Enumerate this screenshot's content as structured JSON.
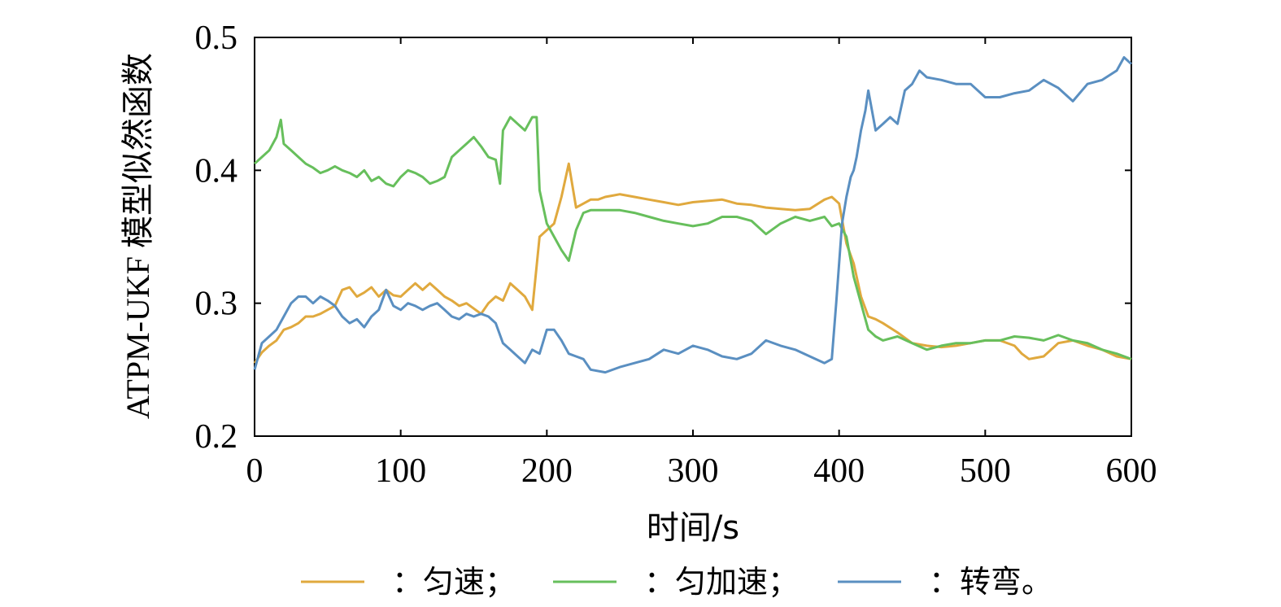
{
  "chart_data": {
    "type": "line",
    "title": "",
    "xlabel": "时间/s",
    "ylabel": "ATPM-UKF 模型似然函数",
    "xlim": [
      0,
      600
    ],
    "ylim": [
      0.2,
      0.5
    ],
    "xticks": [
      0,
      100,
      200,
      300,
      400,
      500,
      600
    ],
    "xtick_labels": [
      "0",
      "100",
      "200",
      "300",
      "400",
      "500",
      "600"
    ],
    "yticks": [
      0.2,
      0.3,
      0.4,
      0.5
    ],
    "ytick_labels": [
      "0.2",
      "0.3",
      "0.4",
      "0.5"
    ],
    "grid": false,
    "legend_position": "bottom",
    "legend_colon": "：",
    "series": [
      {
        "name": "匀速；",
        "color": "#E0A93E",
        "x": [
          0,
          5,
          10,
          15,
          20,
          25,
          30,
          35,
          40,
          45,
          50,
          55,
          60,
          65,
          70,
          75,
          80,
          85,
          90,
          95,
          100,
          105,
          110,
          115,
          120,
          125,
          130,
          135,
          140,
          145,
          150,
          155,
          160,
          165,
          170,
          175,
          180,
          185,
          190,
          195,
          200,
          205,
          210,
          215,
          220,
          225,
          230,
          235,
          240,
          245,
          250,
          260,
          270,
          280,
          290,
          300,
          310,
          320,
          330,
          340,
          350,
          360,
          370,
          380,
          390,
          395,
          400,
          405,
          410,
          415,
          420,
          425,
          430,
          440,
          450,
          460,
          470,
          480,
          490,
          500,
          510,
          520,
          525,
          530,
          540,
          550,
          560,
          570,
          580,
          590,
          600
        ],
        "y": [
          0.255,
          0.263,
          0.268,
          0.272,
          0.28,
          0.282,
          0.285,
          0.29,
          0.29,
          0.292,
          0.295,
          0.298,
          0.31,
          0.312,
          0.305,
          0.308,
          0.312,
          0.305,
          0.31,
          0.306,
          0.305,
          0.31,
          0.315,
          0.31,
          0.315,
          0.31,
          0.305,
          0.302,
          0.298,
          0.3,
          0.296,
          0.292,
          0.3,
          0.305,
          0.302,
          0.315,
          0.31,
          0.305,
          0.295,
          0.35,
          0.355,
          0.36,
          0.38,
          0.405,
          0.372,
          0.375,
          0.378,
          0.378,
          0.38,
          0.381,
          0.382,
          0.38,
          0.378,
          0.376,
          0.374,
          0.376,
          0.377,
          0.378,
          0.375,
          0.374,
          0.372,
          0.371,
          0.37,
          0.371,
          0.378,
          0.38,
          0.375,
          0.345,
          0.33,
          0.305,
          0.29,
          0.288,
          0.285,
          0.278,
          0.27,
          0.268,
          0.267,
          0.268,
          0.27,
          0.272,
          0.272,
          0.268,
          0.262,
          0.258,
          0.26,
          0.27,
          0.272,
          0.268,
          0.265,
          0.26,
          0.258
        ]
      },
      {
        "name": "匀加速；",
        "color": "#67BF5C",
        "x": [
          0,
          5,
          10,
          15,
          18,
          20,
          25,
          30,
          35,
          40,
          45,
          50,
          55,
          60,
          65,
          70,
          75,
          80,
          85,
          90,
          95,
          100,
          105,
          110,
          115,
          120,
          125,
          130,
          135,
          140,
          145,
          150,
          155,
          160,
          165,
          168,
          170,
          175,
          180,
          185,
          190,
          193,
          195,
          200,
          205,
          210,
          215,
          220,
          225,
          230,
          240,
          250,
          260,
          270,
          280,
          290,
          300,
          310,
          320,
          330,
          340,
          350,
          360,
          370,
          380,
          390,
          395,
          400,
          405,
          410,
          415,
          420,
          425,
          430,
          440,
          450,
          460,
          470,
          480,
          490,
          500,
          510,
          520,
          530,
          540,
          550,
          560,
          570,
          580,
          590,
          600
        ],
        "y": [
          0.405,
          0.41,
          0.415,
          0.425,
          0.438,
          0.42,
          0.415,
          0.41,
          0.405,
          0.402,
          0.398,
          0.4,
          0.403,
          0.4,
          0.398,
          0.395,
          0.4,
          0.392,
          0.395,
          0.39,
          0.388,
          0.395,
          0.4,
          0.398,
          0.395,
          0.39,
          0.392,
          0.395,
          0.41,
          0.415,
          0.42,
          0.425,
          0.418,
          0.41,
          0.408,
          0.39,
          0.43,
          0.44,
          0.435,
          0.43,
          0.44,
          0.44,
          0.385,
          0.36,
          0.35,
          0.34,
          0.332,
          0.355,
          0.368,
          0.37,
          0.37,
          0.37,
          0.368,
          0.365,
          0.362,
          0.36,
          0.358,
          0.36,
          0.365,
          0.365,
          0.362,
          0.352,
          0.36,
          0.365,
          0.362,
          0.365,
          0.358,
          0.36,
          0.35,
          0.32,
          0.3,
          0.28,
          0.275,
          0.272,
          0.275,
          0.27,
          0.265,
          0.268,
          0.27,
          0.27,
          0.272,
          0.272,
          0.275,
          0.274,
          0.272,
          0.276,
          0.272,
          0.27,
          0.265,
          0.262,
          0.258
        ]
      },
      {
        "name": "转弯。",
        "color": "#5A8FC1",
        "x": [
          0,
          5,
          10,
          15,
          20,
          25,
          30,
          35,
          40,
          45,
          50,
          55,
          60,
          65,
          70,
          75,
          80,
          85,
          90,
          95,
          100,
          105,
          110,
          115,
          120,
          125,
          130,
          135,
          140,
          145,
          150,
          155,
          160,
          165,
          170,
          175,
          180,
          185,
          190,
          195,
          200,
          205,
          210,
          215,
          220,
          225,
          230,
          240,
          250,
          260,
          270,
          280,
          290,
          300,
          310,
          320,
          330,
          340,
          350,
          360,
          370,
          380,
          390,
          395,
          398,
          400,
          402,
          405,
          408,
          410,
          412,
          415,
          418,
          420,
          425,
          430,
          435,
          440,
          445,
          450,
          455,
          460,
          470,
          480,
          490,
          500,
          510,
          520,
          530,
          540,
          550,
          560,
          570,
          580,
          590,
          595,
          600
        ],
        "y": [
          0.25,
          0.27,
          0.275,
          0.28,
          0.29,
          0.3,
          0.305,
          0.305,
          0.3,
          0.305,
          0.302,
          0.298,
          0.29,
          0.285,
          0.288,
          0.282,
          0.29,
          0.295,
          0.31,
          0.298,
          0.295,
          0.3,
          0.298,
          0.295,
          0.298,
          0.3,
          0.295,
          0.29,
          0.288,
          0.292,
          0.29,
          0.292,
          0.29,
          0.285,
          0.27,
          0.265,
          0.26,
          0.255,
          0.265,
          0.262,
          0.28,
          0.28,
          0.272,
          0.262,
          0.26,
          0.258,
          0.25,
          0.248,
          0.252,
          0.255,
          0.258,
          0.265,
          0.262,
          0.268,
          0.265,
          0.26,
          0.258,
          0.262,
          0.272,
          0.268,
          0.265,
          0.26,
          0.255,
          0.258,
          0.3,
          0.33,
          0.36,
          0.38,
          0.395,
          0.4,
          0.41,
          0.43,
          0.445,
          0.46,
          0.43,
          0.435,
          0.44,
          0.435,
          0.46,
          0.465,
          0.475,
          0.47,
          0.468,
          0.465,
          0.465,
          0.455,
          0.455,
          0.458,
          0.46,
          0.468,
          0.462,
          0.452,
          0.465,
          0.468,
          0.475,
          0.485,
          0.48
        ]
      }
    ]
  }
}
